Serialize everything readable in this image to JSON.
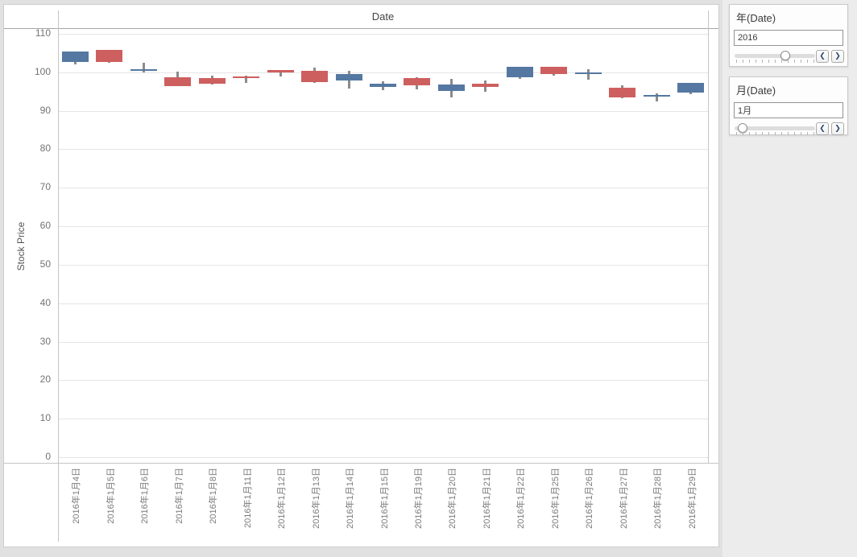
{
  "header": {
    "title": "Date"
  },
  "chart_data": {
    "type": "candlestick",
    "title": "Date",
    "xlabel": "",
    "ylabel": "Stock Price",
    "ylim": [
      0,
      111.5
    ],
    "y_ticks": [
      0,
      10,
      20,
      30,
      40,
      50,
      60,
      70,
      80,
      90,
      100,
      110
    ],
    "grid": true,
    "colors": {
      "up": "#5478a1",
      "down": "#ce5f5f",
      "wick": "#8b8b8b"
    },
    "series": [
      {
        "date": "2016年1月4日",
        "open": 102.61,
        "high": 105.37,
        "low": 102.0,
        "close": 105.35
      },
      {
        "date": "2016年1月5日",
        "open": 105.75,
        "high": 105.85,
        "low": 102.41,
        "close": 102.71
      },
      {
        "date": "2016年1月6日",
        "open": 100.56,
        "high": 102.37,
        "low": 99.87,
        "close": 100.7
      },
      {
        "date": "2016年1月7日",
        "open": 98.68,
        "high": 100.13,
        "low": 96.43,
        "close": 96.45
      },
      {
        "date": "2016年1月8日",
        "open": 98.55,
        "high": 99.11,
        "low": 96.76,
        "close": 96.96
      },
      {
        "date": "2016年1月11日",
        "open": 98.97,
        "high": 99.06,
        "low": 97.34,
        "close": 98.53
      },
      {
        "date": "2016年1月12日",
        "open": 100.55,
        "high": 100.69,
        "low": 98.84,
        "close": 99.96
      },
      {
        "date": "2016年1月13日",
        "open": 100.32,
        "high": 101.19,
        "low": 97.3,
        "close": 97.39
      },
      {
        "date": "2016年1月14日",
        "open": 97.96,
        "high": 100.48,
        "low": 95.74,
        "close": 99.52
      },
      {
        "date": "2016年1月15日",
        "open": 96.2,
        "high": 97.71,
        "low": 95.36,
        "close": 97.13
      },
      {
        "date": "2016年1月19日",
        "open": 98.41,
        "high": 98.65,
        "low": 95.5,
        "close": 96.66
      },
      {
        "date": "2016年1月20日",
        "open": 95.1,
        "high": 98.19,
        "low": 93.42,
        "close": 96.79
      },
      {
        "date": "2016年1月21日",
        "open": 97.06,
        "high": 97.88,
        "low": 94.94,
        "close": 96.3
      },
      {
        "date": "2016年1月22日",
        "open": 98.63,
        "high": 101.46,
        "low": 98.37,
        "close": 101.42
      },
      {
        "date": "2016年1月25日",
        "open": 101.52,
        "high": 101.53,
        "low": 99.21,
        "close": 99.44
      },
      {
        "date": "2016年1月26日",
        "open": 99.93,
        "high": 100.88,
        "low": 98.07,
        "close": 99.99
      },
      {
        "date": "2016年1月27日",
        "open": 96.04,
        "high": 96.63,
        "low": 93.34,
        "close": 93.42
      },
      {
        "date": "2016年1月28日",
        "open": 93.79,
        "high": 94.52,
        "low": 92.39,
        "close": 94.09
      },
      {
        "date": "2016年1月29日",
        "open": 94.79,
        "high": 97.34,
        "low": 94.35,
        "close": 97.34
      }
    ]
  },
  "filters": {
    "year": {
      "title": "年(Date)",
      "value": "2016",
      "slider_pct": 63
    },
    "month": {
      "title": "月(Date)",
      "value": "1月",
      "slider_pct": 10
    }
  },
  "icons": {
    "chevron_left": "❮",
    "chevron_right": "❯"
  }
}
